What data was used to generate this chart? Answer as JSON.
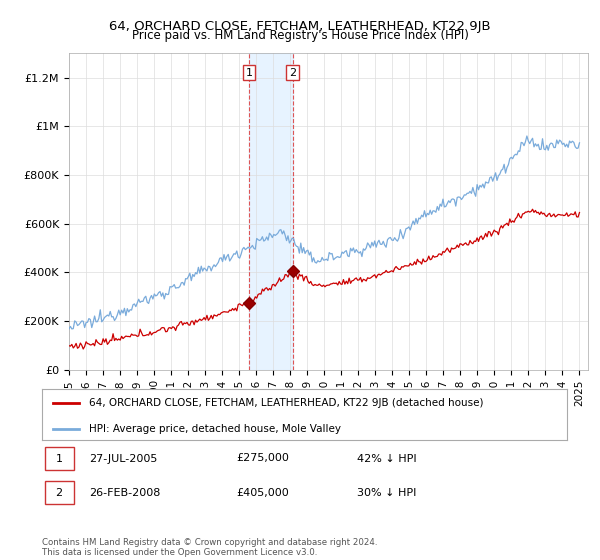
{
  "title": "64, ORCHARD CLOSE, FETCHAM, LEATHERHEAD, KT22 9JB",
  "subtitle": "Price paid vs. HM Land Registry's House Price Index (HPI)",
  "ylabel_ticks": [
    "£0",
    "£200K",
    "£400K",
    "£600K",
    "£800K",
    "£1M",
    "£1.2M"
  ],
  "ytick_values": [
    0,
    200000,
    400000,
    600000,
    800000,
    1000000,
    1200000
  ],
  "ylim": [
    0,
    1300000
  ],
  "xlim_start": 1995.0,
  "xlim_end": 2025.5,
  "transaction1": {
    "date": 2005.57,
    "price": 275000,
    "label": "1"
  },
  "transaction2": {
    "date": 2008.15,
    "price": 405000,
    "label": "2"
  },
  "legend_line1": "64, ORCHARD CLOSE, FETCHAM, LEATHERHEAD, KT22 9JB (detached house)",
  "legend_line2": "HPI: Average price, detached house, Mole Valley",
  "color_sold": "#cc0000",
  "color_hpi": "#7aabdb",
  "color_shade": "#ddeeff",
  "background_color": "#ffffff",
  "footnote": "Contains HM Land Registry data © Crown copyright and database right 2024.\nThis data is licensed under the Open Government Licence v3.0."
}
